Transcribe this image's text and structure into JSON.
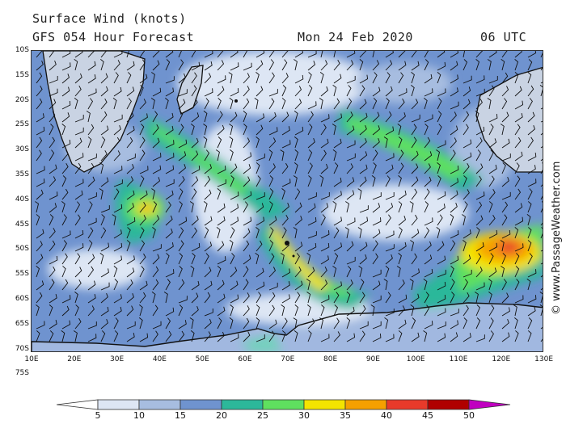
{
  "header": {
    "title_line1": "Surface Wind (knots)",
    "title_line2": "GFS 054 Hour Forecast",
    "date": "Mon 24 Feb 2020",
    "time": "06 UTC"
  },
  "copyright": "© www.PassageWeather.com",
  "map": {
    "region": "South Indian Ocean / Southern Ocean",
    "lat_labels": [
      "10S",
      "15S",
      "20S",
      "25S",
      "30S",
      "35S",
      "40S",
      "45S",
      "50S",
      "55S",
      "60S",
      "65S",
      "70S",
      "75S"
    ],
    "lon_labels": [
      "10E",
      "20E",
      "30E",
      "40E",
      "50E",
      "60E",
      "70E",
      "80E",
      "90E",
      "100E",
      "110E",
      "120E",
      "130E"
    ],
    "features": [
      "wind-barbs",
      "coastlines",
      "wind-speed-shading"
    ]
  },
  "colorbar": {
    "labels": [
      "5",
      "10",
      "15",
      "20",
      "25",
      "30",
      "35",
      "40",
      "45",
      "50"
    ],
    "colors": [
      "#ffffff",
      "#dde6f4",
      "#a7bde0",
      "#6f93cf",
      "#2cb89a",
      "#5fe05f",
      "#f4e400",
      "#f5a000",
      "#e83a2a",
      "#b00000",
      "#c000c0"
    ]
  }
}
